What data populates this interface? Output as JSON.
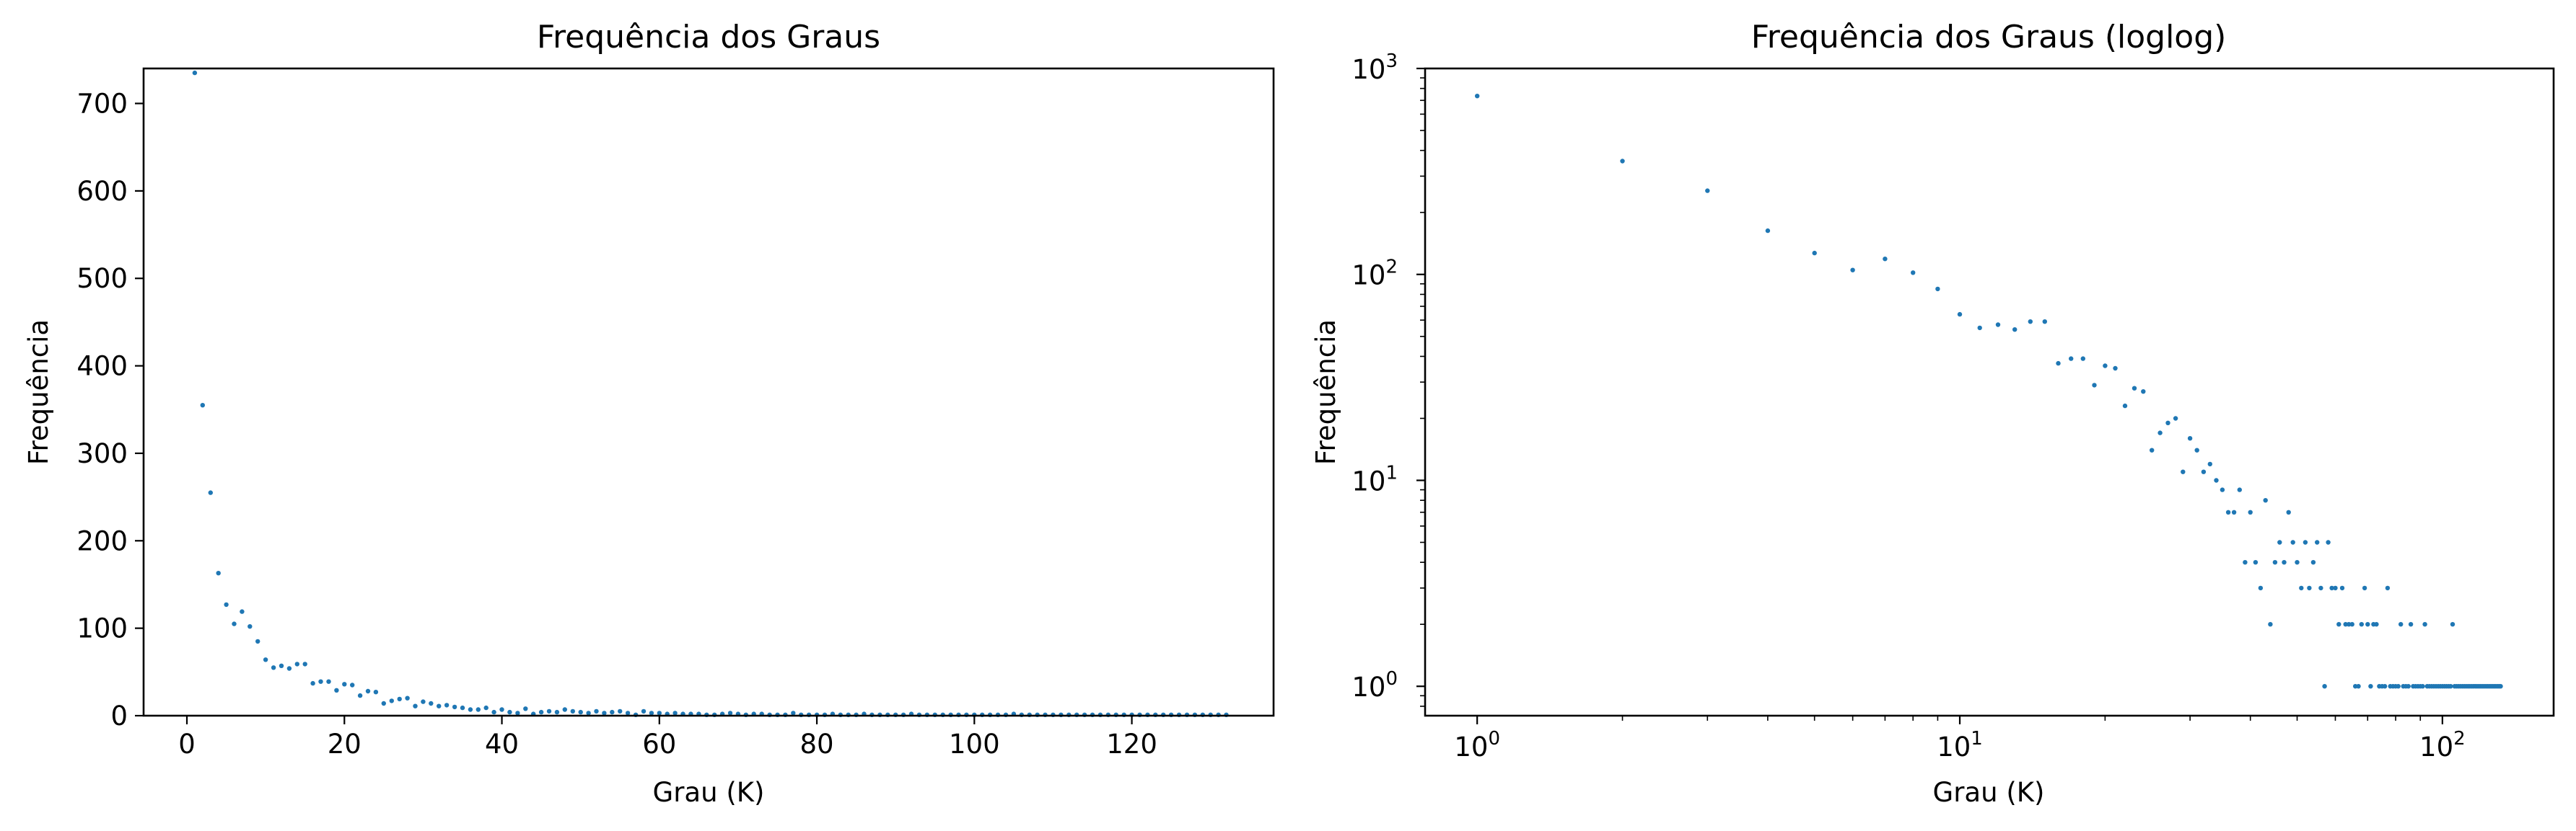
{
  "chart_data": [
    {
      "type": "scatter",
      "title": "Frequência dos Graus",
      "xlabel": "Grau (K)",
      "ylabel": "Frequência",
      "xlim": [
        -5.5,
        138
      ],
      "ylim": [
        0,
        740
      ],
      "xticks": [
        0,
        20,
        40,
        60,
        80,
        100,
        120
      ],
      "yticks": [
        0,
        100,
        200,
        300,
        400,
        500,
        600,
        700
      ],
      "xticklabels": [
        "0",
        "20",
        "40",
        "60",
        "80",
        "100",
        "120"
      ],
      "yticklabels": [
        "0",
        "100",
        "200",
        "300",
        "400",
        "500",
        "600",
        "700"
      ],
      "grid": false,
      "color": "#1f77b4",
      "x": [
        1,
        2,
        3,
        4,
        5,
        6,
        7,
        8,
        9,
        10,
        11,
        12,
        13,
        14,
        15,
        16,
        17,
        18,
        19,
        20,
        21,
        22,
        23,
        24,
        25,
        26,
        27,
        28,
        29,
        30,
        31,
        32,
        33,
        34,
        35,
        36,
        37,
        38,
        39,
        40,
        41,
        42,
        43,
        44,
        45,
        46,
        47,
        48,
        49,
        50,
        51,
        52,
        53,
        54,
        55,
        56,
        57,
        58,
        59,
        60,
        61,
        62,
        63,
        64,
        65,
        66,
        67,
        68,
        69,
        70,
        71,
        72,
        73,
        74,
        75,
        76,
        77,
        78,
        79,
        80,
        81,
        82,
        83,
        84,
        85,
        86,
        87,
        88,
        89,
        90,
        91,
        92,
        93,
        94,
        95,
        96,
        97,
        98,
        99,
        100,
        101,
        102,
        103,
        104,
        105,
        106,
        107,
        108,
        109,
        110,
        111,
        112,
        113,
        114,
        115,
        116,
        117,
        118,
        119,
        120,
        121,
        122,
        123,
        124,
        125,
        126,
        127,
        128,
        129,
        130,
        131,
        132
      ],
      "y": [
        735,
        355,
        255,
        163,
        127,
        105,
        119,
        102,
        85,
        64,
        55,
        57,
        54,
        59,
        59,
        37,
        39,
        39,
        29,
        36,
        35,
        23,
        28,
        27,
        14,
        17,
        19,
        20,
        11,
        16,
        14,
        11,
        12,
        10,
        9,
        7,
        7,
        9,
        4,
        7,
        4,
        3,
        8,
        2,
        4,
        5,
        4,
        7,
        5,
        4,
        3,
        5,
        3,
        4,
        5,
        3,
        1,
        5,
        3,
        3,
        2,
        3,
        2,
        2,
        2,
        1,
        1,
        2,
        3,
        2,
        1,
        2,
        2,
        1,
        1,
        1,
        3,
        1,
        1,
        1,
        1,
        2,
        1,
        1,
        1,
        2,
        1,
        1,
        1,
        1,
        1,
        2,
        1,
        1,
        1,
        1,
        1,
        1,
        1,
        1,
        1,
        1,
        1,
        1,
        2,
        1,
        1,
        1,
        1,
        1,
        1,
        1,
        1,
        1,
        1,
        1,
        1,
        1,
        1,
        1,
        1,
        1,
        1,
        1,
        1,
        1,
        1,
        1,
        1,
        1,
        1,
        1
      ]
    },
    {
      "type": "scatter",
      "title": "Frequência dos Graus (loglog)",
      "xlabel": "Grau (K)",
      "ylabel": "Frequência",
      "xscale": "log",
      "yscale": "log",
      "xlim": [
        0.78,
        170
      ],
      "ylim": [
        0.72,
        1000
      ],
      "xticks": [
        1,
        10,
        100
      ],
      "yticks": [
        1,
        10,
        100,
        1000
      ],
      "xticklabels_base": "10",
      "xticklabels_exp": [
        "0",
        "1",
        "2"
      ],
      "yticklabels_base": "10",
      "yticklabels_exp": [
        "0",
        "1",
        "2",
        "3"
      ],
      "grid": false,
      "color": "#1f77b4",
      "x": [
        1,
        2,
        3,
        4,
        5,
        6,
        7,
        8,
        9,
        10,
        11,
        12,
        13,
        14,
        15,
        16,
        17,
        18,
        19,
        20,
        21,
        22,
        23,
        24,
        25,
        26,
        27,
        28,
        29,
        30,
        31,
        32,
        33,
        34,
        35,
        36,
        37,
        38,
        39,
        40,
        41,
        42,
        43,
        44,
        45,
        46,
        47,
        48,
        49,
        50,
        51,
        52,
        53,
        54,
        55,
        56,
        57,
        58,
        59,
        60,
        61,
        62,
        63,
        64,
        65,
        66,
        67,
        68,
        69,
        70,
        71,
        72,
        73,
        74,
        75,
        76,
        77,
        78,
        79,
        80,
        81,
        82,
        83,
        84,
        85,
        86,
        87,
        88,
        89,
        90,
        91,
        92,
        93,
        94,
        95,
        96,
        97,
        98,
        99,
        100,
        101,
        102,
        103,
        104,
        105,
        106,
        107,
        108,
        109,
        110,
        111,
        112,
        113,
        114,
        115,
        116,
        117,
        118,
        119,
        120,
        121,
        122,
        123,
        124,
        125,
        126,
        127,
        128,
        129,
        130,
        131,
        132
      ],
      "y": [
        735,
        355,
        255,
        163,
        127,
        105,
        119,
        102,
        85,
        64,
        55,
        57,
        54,
        59,
        59,
        37,
        39,
        39,
        29,
        36,
        35,
        23,
        28,
        27,
        14,
        17,
        19,
        20,
        11,
        16,
        14,
        11,
        12,
        10,
        9,
        7,
        7,
        9,
        4,
        7,
        4,
        3,
        8,
        2,
        4,
        5,
        4,
        7,
        5,
        4,
        3,
        5,
        3,
        4,
        5,
        3,
        1,
        5,
        3,
        3,
        2,
        3,
        2,
        2,
        2,
        1,
        1,
        2,
        3,
        2,
        1,
        2,
        2,
        1,
        1,
        1,
        3,
        1,
        1,
        1,
        1,
        2,
        1,
        1,
        1,
        2,
        1,
        1,
        1,
        1,
        1,
        2,
        1,
        1,
        1,
        1,
        1,
        1,
        1,
        1,
        1,
        1,
        1,
        1,
        2,
        1,
        1,
        1,
        1,
        1,
        1,
        1,
        1,
        1,
        1,
        1,
        1,
        1,
        1,
        1,
        1,
        1,
        1,
        1,
        1,
        1,
        1,
        1,
        1,
        1,
        1,
        1
      ]
    }
  ]
}
